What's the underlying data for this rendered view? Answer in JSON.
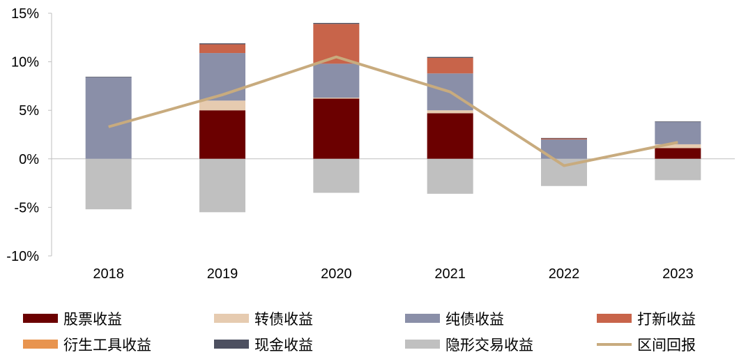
{
  "chart_data": {
    "type": "bar",
    "stacked": true,
    "categories": [
      "2018",
      "2019",
      "2020",
      "2021",
      "2022",
      "2023"
    ],
    "ylim": [
      -10,
      15
    ],
    "yticks": [
      "-10%",
      "-5%",
      "0%",
      "5%",
      "10%",
      "15%"
    ],
    "series": [
      {
        "name": "股票收益",
        "color": "#6b0000",
        "values": [
          0,
          5.0,
          6.2,
          4.7,
          0,
          1.1
        ]
      },
      {
        "name": "转债收益",
        "color": "#e6cbb0",
        "values": [
          0,
          1.0,
          0.1,
          0.3,
          0,
          0.4
        ]
      },
      {
        "name": "纯债收益",
        "color": "#8a8fa8",
        "values": [
          8.4,
          4.9,
          3.5,
          3.8,
          2.0,
          2.3
        ]
      },
      {
        "name": "打新收益",
        "color": "#c8644a",
        "values": [
          0,
          0.9,
          4.1,
          1.6,
          0.1,
          0
        ]
      },
      {
        "name": "衍生工具收益",
        "color": "#e8944f",
        "values": [
          0,
          0,
          0,
          0,
          0,
          0
        ]
      },
      {
        "name": "现金收益",
        "color": "#4d5060",
        "values": [
          0.05,
          0.1,
          0.1,
          0.1,
          0.05,
          0.05
        ]
      },
      {
        "name": "隐形交易收益",
        "color": "#c0c0c0",
        "values": [
          -5.2,
          -5.5,
          -3.5,
          -3.6,
          -2.8,
          -2.2
        ]
      }
    ],
    "line": {
      "name": "区间回报",
      "color": "#c8ab7e",
      "values": [
        3.3,
        6.6,
        10.5,
        6.9,
        -0.7,
        1.7
      ]
    },
    "legend_position": "bottom"
  }
}
